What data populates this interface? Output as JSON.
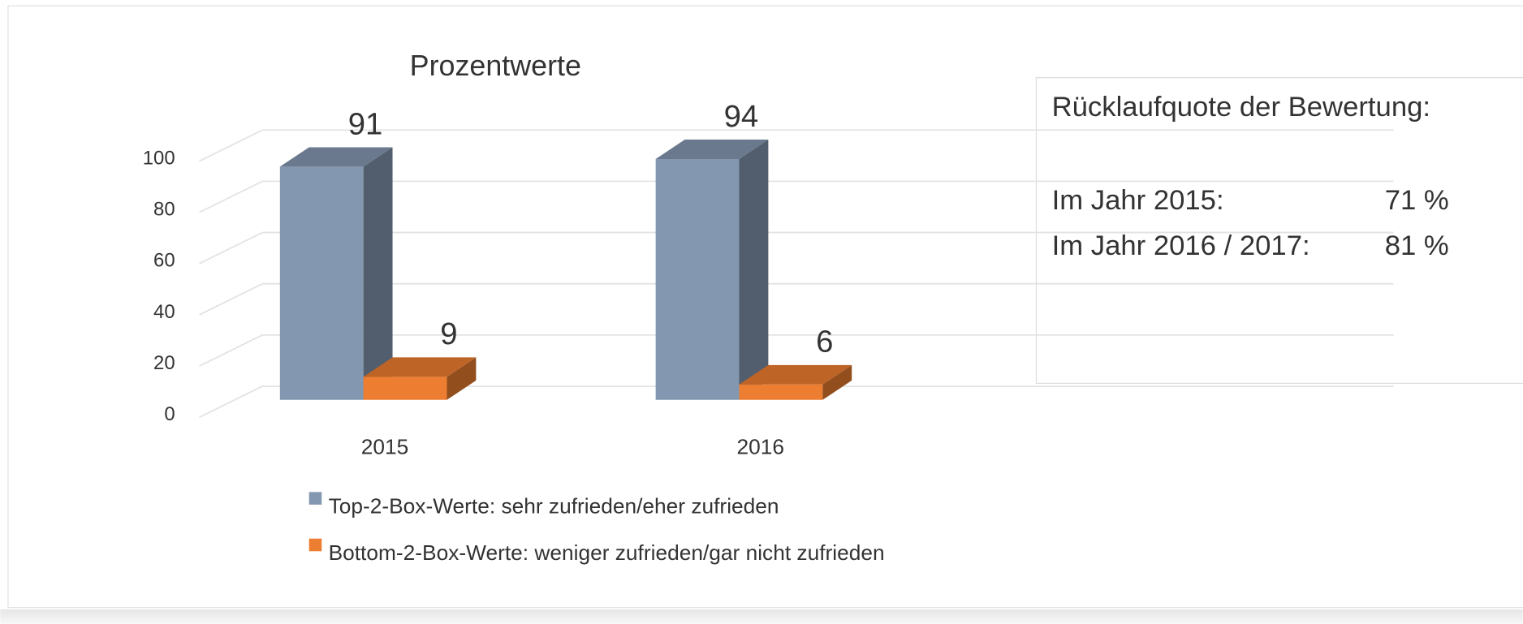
{
  "chart_data": {
    "type": "bar3d",
    "title": "Prozentwerte",
    "categories": [
      "2015",
      "2016"
    ],
    "series": [
      {
        "name": "Top-2-Box-Werte: sehr zufrieden/eher zufrieden",
        "color": "#8497b0",
        "values": [
          91,
          94
        ]
      },
      {
        "name": "Bottom-2-Box-Werte: weniger zufrieden/gar nicht zufrieden",
        "color": "#ed7d31",
        "values": [
          9,
          6
        ]
      }
    ],
    "ylim": [
      0,
      100
    ],
    "yticks": [
      0,
      20,
      40,
      60,
      80,
      100
    ],
    "grid": true,
    "legend": "bottom",
    "annotation": {
      "title": "Rücklaufquote der Bewertung:",
      "lines": [
        {
          "label": "Im Jahr 2015:",
          "value": "71 %"
        },
        {
          "label": "Im Jahr 2016 / 2017:",
          "value": "81 %"
        }
      ]
    }
  }
}
